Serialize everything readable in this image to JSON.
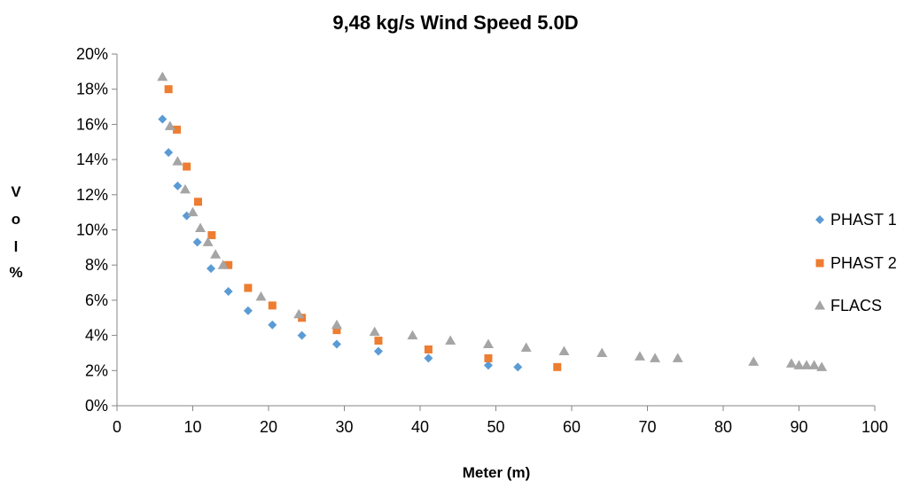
{
  "chart_data": {
    "type": "scatter",
    "title": "9,48 kg/s Wind Speed 5.0D",
    "xlabel": "Meter (m)",
    "ylabel_letters": [
      "V",
      "o",
      "l",
      "%"
    ],
    "xlim": [
      0,
      100
    ],
    "ylim": [
      0,
      0.2
    ],
    "x_ticks": [
      0,
      10,
      20,
      30,
      40,
      50,
      60,
      70,
      80,
      90,
      100
    ],
    "x_tick_labels": [
      "0",
      "10",
      "20",
      "30",
      "40",
      "50",
      "60",
      "70",
      "80",
      "90",
      "100"
    ],
    "y_ticks": [
      0,
      0.02,
      0.04,
      0.06,
      0.08,
      0.1,
      0.12,
      0.14,
      0.16,
      0.18,
      0.2
    ],
    "y_tick_labels": [
      "0%",
      "2%",
      "4%",
      "6%",
      "8%",
      "10%",
      "12%",
      "14%",
      "16%",
      "18%",
      "20%"
    ],
    "grid": false,
    "legend_position": "right",
    "series": [
      {
        "name": "PHAST 1",
        "marker": "diamond",
        "color": "#5B9BD5",
        "points": [
          [
            6.0,
            0.163
          ],
          [
            6.8,
            0.144
          ],
          [
            8.0,
            0.125
          ],
          [
            9.2,
            0.108
          ],
          [
            10.6,
            0.093
          ],
          [
            12.4,
            0.078
          ],
          [
            14.7,
            0.065
          ],
          [
            17.3,
            0.054
          ],
          [
            20.5,
            0.046
          ],
          [
            24.4,
            0.04
          ],
          [
            29.0,
            0.035
          ],
          [
            34.5,
            0.031
          ],
          [
            41.1,
            0.027
          ],
          [
            49.0,
            0.023
          ],
          [
            52.9,
            0.022
          ]
        ]
      },
      {
        "name": "PHAST 2",
        "marker": "square",
        "color": "#ED7D31",
        "points": [
          [
            6.8,
            0.18
          ],
          [
            7.9,
            0.157
          ],
          [
            9.2,
            0.136
          ],
          [
            10.7,
            0.116
          ],
          [
            12.5,
            0.097
          ],
          [
            14.7,
            0.08
          ],
          [
            17.3,
            0.067
          ],
          [
            20.5,
            0.057
          ],
          [
            24.4,
            0.05
          ],
          [
            29.0,
            0.043
          ],
          [
            34.5,
            0.037
          ],
          [
            41.1,
            0.032
          ],
          [
            49.0,
            0.027
          ],
          [
            58.1,
            0.022
          ]
        ]
      },
      {
        "name": "FLACS",
        "marker": "triangle",
        "color": "#A5A5A5",
        "points": [
          [
            6.0,
            0.187
          ],
          [
            7.0,
            0.159
          ],
          [
            8.0,
            0.139
          ],
          [
            9.0,
            0.123
          ],
          [
            10.0,
            0.11
          ],
          [
            11.0,
            0.101
          ],
          [
            12.0,
            0.093
          ],
          [
            13.0,
            0.086
          ],
          [
            14.0,
            0.08
          ],
          [
            19.0,
            0.062
          ],
          [
            24.0,
            0.052
          ],
          [
            29.0,
            0.046
          ],
          [
            34.0,
            0.042
          ],
          [
            39.0,
            0.04
          ],
          [
            44.0,
            0.037
          ],
          [
            49.0,
            0.035
          ],
          [
            54.0,
            0.033
          ],
          [
            59.0,
            0.031
          ],
          [
            64.0,
            0.03
          ],
          [
            69.0,
            0.028
          ],
          [
            71.0,
            0.027
          ],
          [
            74.0,
            0.027
          ],
          [
            84.0,
            0.025
          ],
          [
            89.0,
            0.024
          ],
          [
            90.0,
            0.023
          ],
          [
            91.0,
            0.023
          ],
          [
            92.0,
            0.023
          ],
          [
            93.0,
            0.022
          ]
        ]
      }
    ]
  }
}
